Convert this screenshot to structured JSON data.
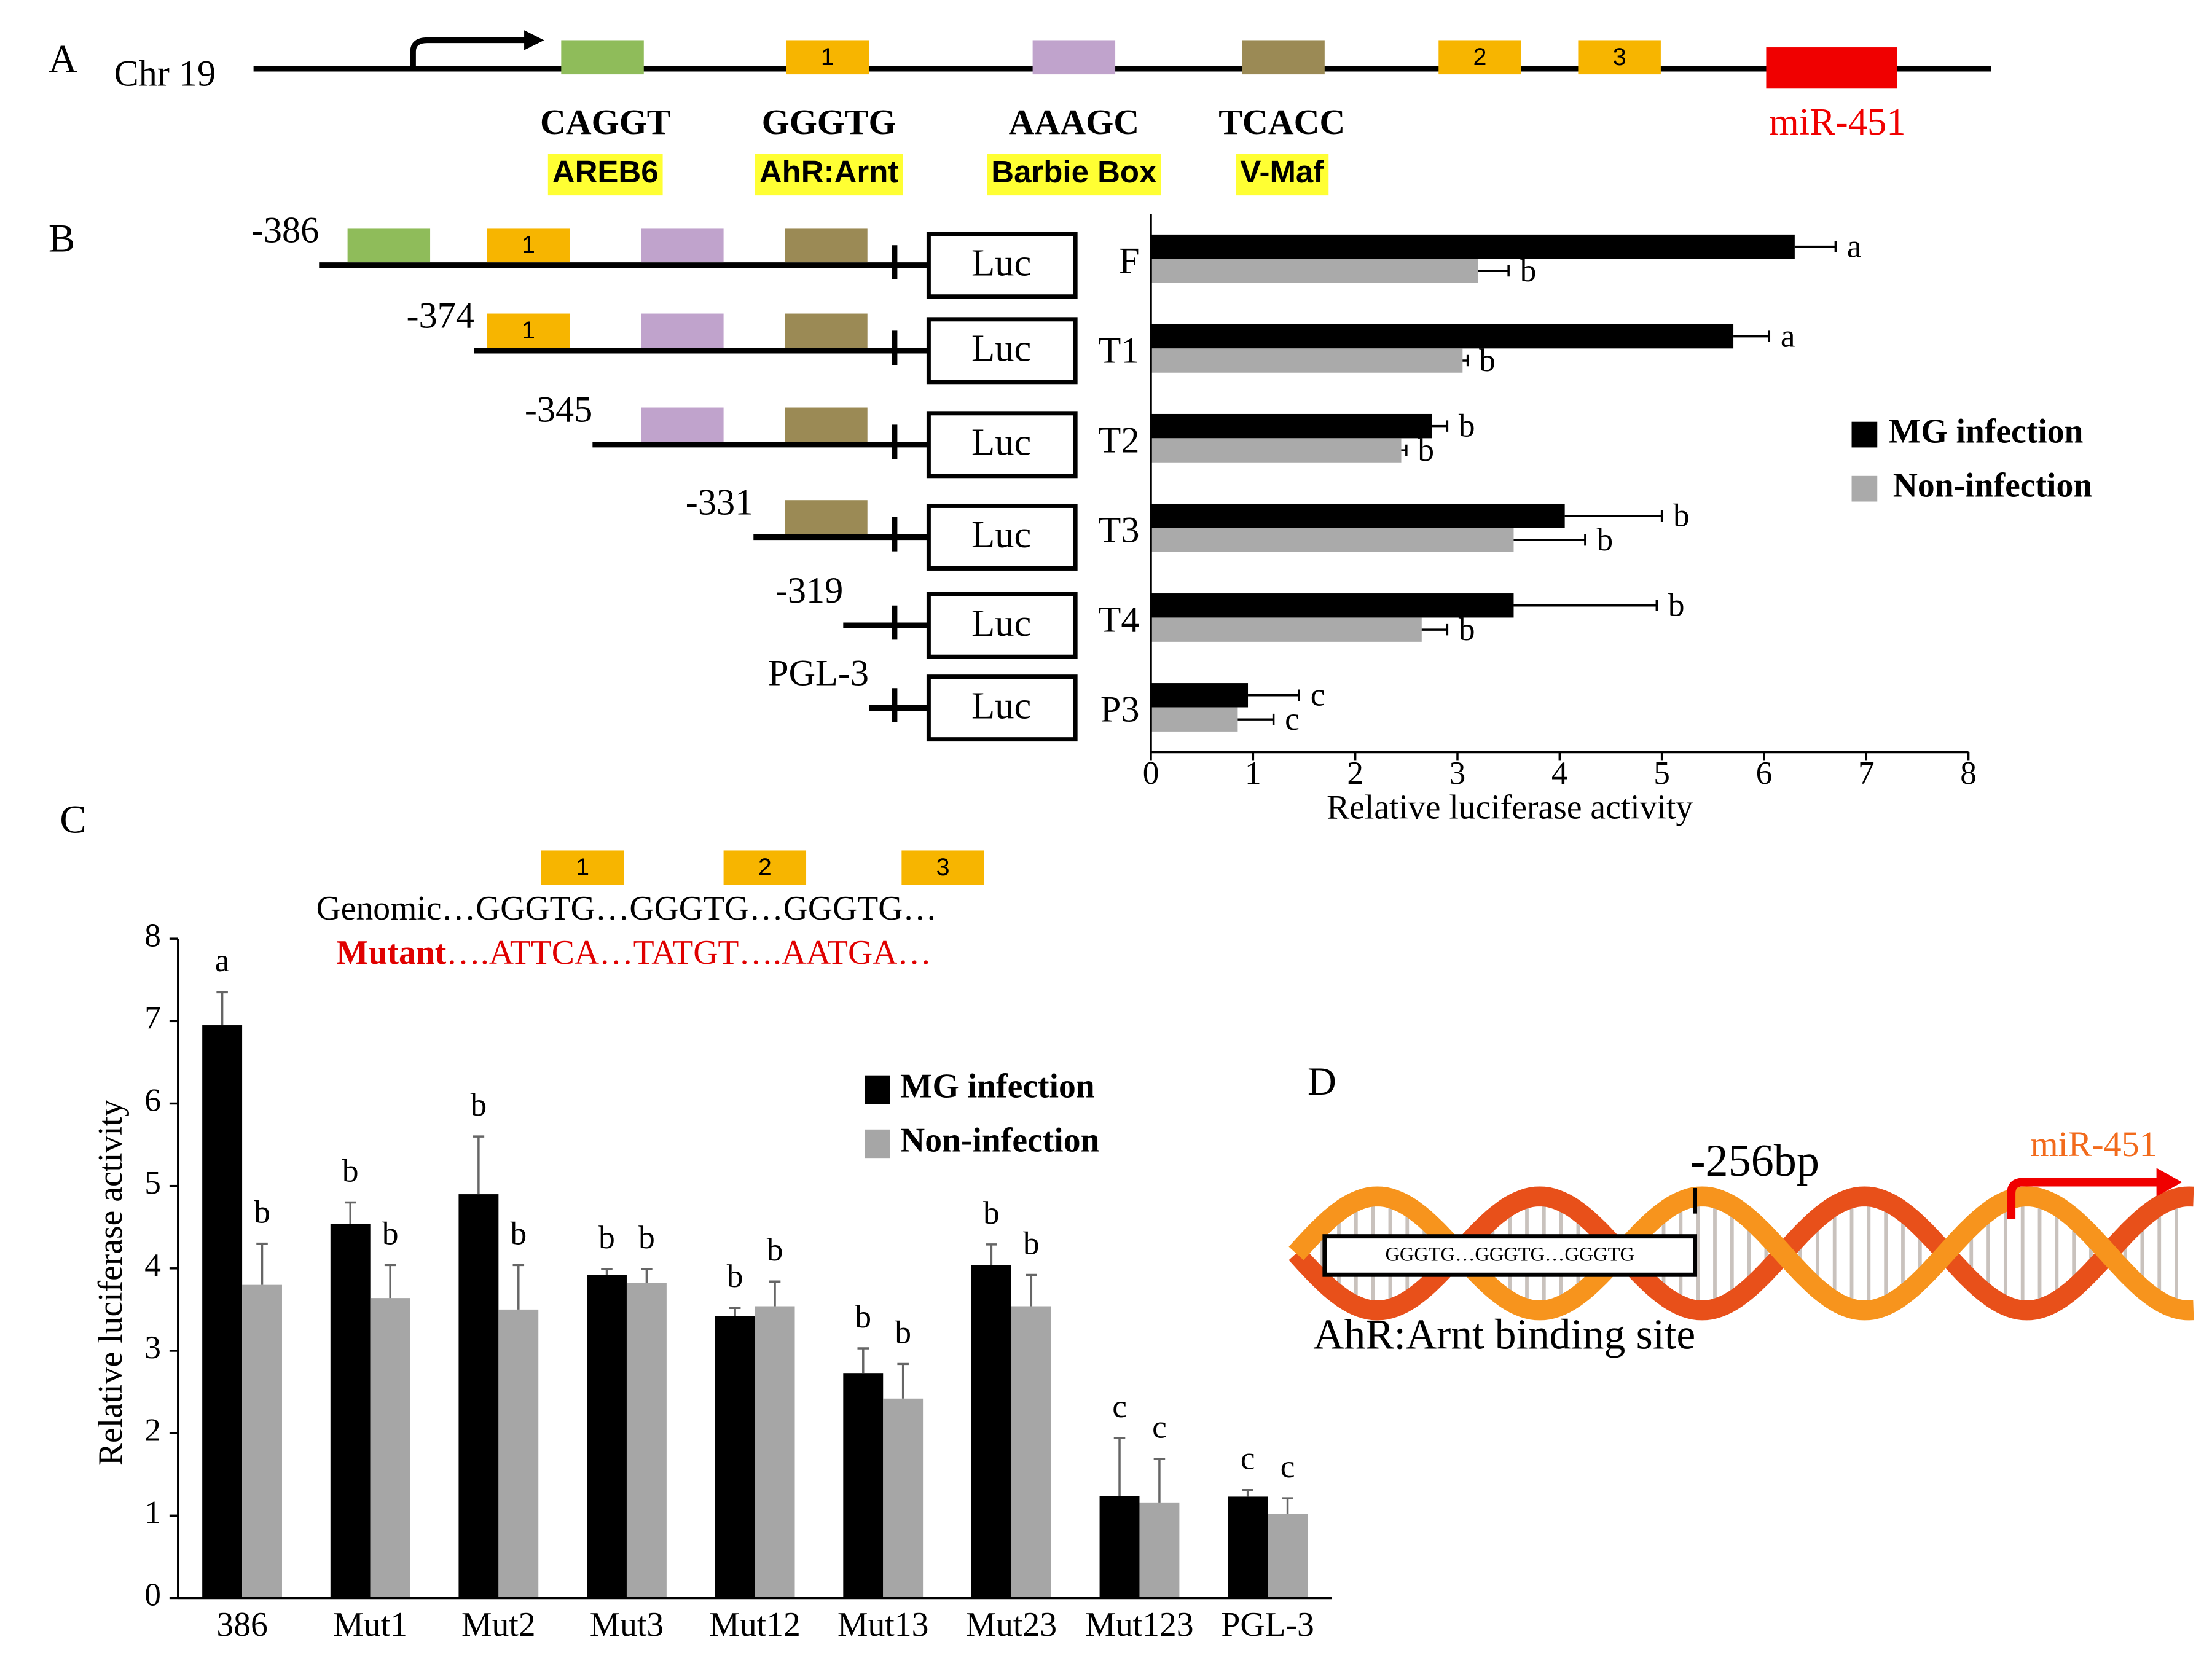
{
  "panel_labels": [
    "A",
    "B",
    "C",
    "D"
  ],
  "diagram_a": {
    "chromosome": "Chr 19",
    "sites": [
      "1",
      "2",
      "3"
    ],
    "motifs": [
      {
        "sequence": "CAGGT",
        "factor": "AREB6"
      },
      {
        "sequence": "GGGTG",
        "factor": "AhR:Arnt"
      },
      {
        "sequence": "AAAGC",
        "factor": "Barbie Box"
      },
      {
        "sequence": "TCACC",
        "factor": "V-Maf"
      }
    ],
    "target": "miR-451"
  },
  "constructs": [
    {
      "start": "-386",
      "reporter": "Luc",
      "site": "1"
    },
    {
      "start": "-374",
      "reporter": "Luc",
      "site": "1"
    },
    {
      "start": "-345",
      "reporter": "Luc"
    },
    {
      "start": "-331",
      "reporter": "Luc"
    },
    {
      "start": "-319",
      "reporter": "Luc"
    },
    {
      "start": "PGL-3",
      "reporter": "Luc"
    }
  ],
  "sequences": {
    "sites": [
      "1",
      "2",
      "3"
    ],
    "genomic": {
      "label": "Genomic",
      "text": "…GGGTG…GGGTG…GGGTG…"
    },
    "mutant": {
      "label": "Mutant",
      "text": "….ATTCA…TATGT….AATGA…"
    }
  },
  "diagram_d": {
    "position": "-256bp",
    "target": "miR-451",
    "sequence": "GGGTG…GGGTG…GGGTG",
    "caption": "AhR:Arnt binding site"
  },
  "chart_data": [
    {
      "type": "hbar",
      "categories": [
        "F",
        "T1",
        "T2",
        "T3",
        "T4",
        "P3"
      ],
      "series": [
        {
          "name": "MG infection",
          "color": "#000000",
          "values": [
            6.3,
            5.7,
            2.75,
            4.05,
            3.55,
            0.95
          ],
          "errors": [
            0.4,
            0.35,
            0.15,
            0.95,
            1.4,
            0.5
          ],
          "sig_labels": [
            "a",
            "a",
            "b",
            "b",
            "b",
            "c"
          ]
        },
        {
          "name": "Non-infection",
          "color": "#aaaaaa",
          "values": [
            3.2,
            3.05,
            2.45,
            3.55,
            2.65,
            0.85
          ],
          "errors": [
            0.3,
            0.05,
            0.05,
            0.7,
            0.25,
            0.35
          ],
          "sig_labels": [
            "b",
            "b",
            "b",
            "b",
            "b",
            "c"
          ]
        }
      ],
      "xlabel": "Relative luciferase activity",
      "xlim": [
        0,
        8
      ],
      "xticks": [
        0,
        1,
        2,
        3,
        4,
        5,
        6,
        7,
        8
      ],
      "legend": "right"
    },
    {
      "type": "bar",
      "categories": [
        "386",
        "Mut1",
        "Mut2",
        "Mut3",
        "Mut12",
        "Mut13",
        "Mut23",
        "Mut123",
        "PGL-3"
      ],
      "series": [
        {
          "name": "MG infection",
          "color": "#000000",
          "values": [
            6.95,
            4.54,
            4.9,
            3.92,
            3.42,
            2.73,
            4.04,
            1.24,
            1.23
          ],
          "errors": [
            0.4,
            0.26,
            0.7,
            0.07,
            0.1,
            0.3,
            0.25,
            0.7,
            0.08
          ],
          "sig_labels": [
            "a",
            "b",
            "b",
            "b",
            "b",
            "b",
            "b",
            "c",
            "c"
          ]
        },
        {
          "name": "Non-infection",
          "color": "#a6a6a6",
          "values": [
            3.8,
            3.64,
            3.5,
            3.82,
            3.54,
            2.42,
            3.54,
            1.16,
            1.02
          ],
          "errors": [
            0.5,
            0.4,
            0.54,
            0.17,
            0.3,
            0.42,
            0.38,
            0.53,
            0.19
          ],
          "sig_labels": [
            "b",
            "b",
            "b",
            "b",
            "b",
            "b",
            "b",
            "c",
            "c"
          ]
        }
      ],
      "ylabel": "Relative luciferase activity",
      "ylim": [
        0,
        8
      ],
      "yticks": [
        0,
        1,
        2,
        3,
        4,
        5,
        6,
        7,
        8
      ],
      "legend": "upper right"
    }
  ]
}
